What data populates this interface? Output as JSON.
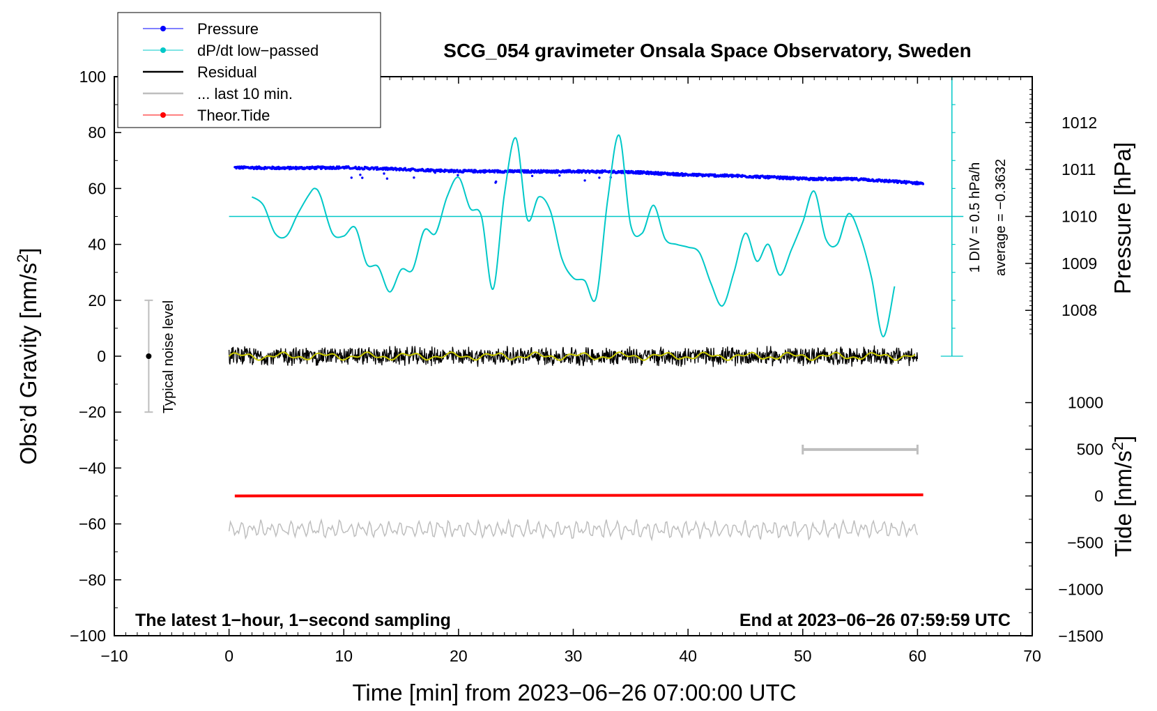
{
  "chart_data": {
    "type": "line",
    "title": "SCG_054 gravimeter Onsala Space Observatory, Sweden",
    "xlabel": "Time [min] from 2023−06−26 07:00:00 UTC",
    "ylabel_main": "Obs’d Gravity [nm/s",
    "ylabel_main_sup": "2",
    "ylabel_main_close": "]",
    "ylabel_pressure": "Pressure [hPa]",
    "ylabel_tide": "Tide [nm/s",
    "ylabel_tide_sup": "2",
    "ylabel_tide_close": "]",
    "xlim": [
      -10,
      70
    ],
    "ylim": [
      -100,
      100
    ],
    "x_ticks": [
      -10,
      0,
      10,
      20,
      30,
      40,
      50,
      60,
      70
    ],
    "x_tick_labels": [
      "−10",
      "0",
      "10",
      "20",
      "30",
      "40",
      "50",
      "60",
      "70"
    ],
    "y_ticks": [
      -100,
      -80,
      -60,
      -40,
      -20,
      0,
      20,
      40,
      60,
      80,
      100
    ],
    "y_tick_labels": [
      "−100",
      "−80",
      "−60",
      "−40",
      "−20",
      "0",
      "20",
      "40",
      "60",
      "80",
      "100"
    ],
    "pressure_axis": {
      "ticks": [
        1008,
        1009,
        1010,
        1011,
        1012
      ],
      "tick_labels": [
        "1008",
        "1009",
        "1010",
        "1011",
        "1012"
      ],
      "map_to_main": [
        [
          1010,
          50
        ],
        [
          1011,
          66.8
        ]
      ]
    },
    "tide_axis": {
      "ticks": [
        -1500,
        -1000,
        -500,
        0,
        500,
        1000
      ],
      "tick_labels": [
        "−1500",
        "−1000",
        "−500",
        "0",
        "500",
        "1000"
      ],
      "map_to_main": [
        [
          0,
          -50
        ],
        [
          1000,
          -16.6
        ]
      ]
    },
    "legend": [
      {
        "label": "Pressure",
        "color": "#0000ff",
        "marker": true
      },
      {
        "label": "dP/dt low−passed",
        "color": "#00c8c8",
        "marker": true
      },
      {
        "label": "Residual",
        "color": "#000000",
        "marker": false
      },
      {
        "label": "... last 10 min.",
        "color": "#bebebe",
        "marker": false
      },
      {
        "label": "Theor.Tide",
        "color": "#ff0000",
        "marker": true
      }
    ],
    "series": [
      {
        "name": "Pressure",
        "color": "#0000ff",
        "x": [
          0.5,
          5,
          10,
          15,
          20,
          25,
          30,
          35,
          40,
          45,
          50,
          55,
          60.5
        ],
        "values": [
          67.5,
          67.3,
          67.5,
          66.9,
          66.2,
          66.1,
          66.1,
          65.9,
          64.9,
          64.4,
          63.5,
          63.3,
          61.8
        ]
      },
      {
        "name": "dP/dt low−passed",
        "color": "#00c8c8",
        "x": [
          2,
          3,
          4,
          5,
          6,
          7,
          7.5,
          8,
          9,
          10,
          11,
          12,
          13,
          14,
          15,
          16,
          17,
          18,
          19,
          20,
          21,
          22,
          23,
          24,
          25,
          26,
          27,
          28,
          29,
          30,
          31,
          32,
          33,
          34,
          35,
          36,
          37,
          38,
          39,
          40,
          41,
          42,
          43,
          44,
          45,
          46,
          47,
          48,
          49,
          50,
          51,
          52,
          53,
          54,
          55,
          56,
          57,
          58
        ],
        "values": [
          57,
          54,
          44,
          43,
          51,
          58,
          60,
          57,
          44,
          43,
          46,
          33,
          32,
          23,
          31,
          31,
          45,
          44,
          57,
          64,
          53,
          50,
          24,
          58,
          78,
          49,
          57,
          52,
          35,
          28,
          27,
          21,
          56,
          79,
          47,
          44,
          54,
          42,
          40,
          39,
          37,
          26,
          18,
          30,
          44,
          34,
          40,
          29,
          38,
          48,
          59,
          42,
          40,
          51,
          43,
          28,
          7,
          25
        ]
      },
      {
        "name": "Residual",
        "color": "#000000",
        "x": [
          0,
          60
        ],
        "values": [
          0,
          0
        ],
        "noise_amplitude": 3
      },
      {
        "name": "Residual (smoothed)",
        "color": "#c8c800",
        "x": [
          0,
          60
        ],
        "values": [
          0,
          0
        ]
      },
      {
        "name": "Theor.Tide",
        "color": "#ff0000",
        "x": [
          0.5,
          60.5
        ],
        "values": [
          -50,
          -49.6
        ]
      },
      {
        "name": "... last 10 min.",
        "color": "#bebebe",
        "x": [
          0,
          60
        ],
        "values": [
          -62,
          -62
        ],
        "noise_amplitude": 3
      }
    ],
    "annotations": {
      "noise_label": "Typical noise level",
      "noise_bar": {
        "x": -7,
        "y": 0,
        "low": -20,
        "high": 20
      },
      "last10_bar": {
        "x_start": 50,
        "x_end": 60,
        "y": -33.4
      },
      "dpdt_baseline": 50,
      "div_label": "1 DIV = 0.5 hPa/h",
      "average_label": "average = −0.3632",
      "dpdt_scale": {
        "x": 63,
        "from": 0,
        "to": 100,
        "ticks": 10
      },
      "bottom_left": "The latest 1−hour, 1−second sampling",
      "bottom_right": "End at 2023−06−26 07:59:59 UTC"
    }
  }
}
